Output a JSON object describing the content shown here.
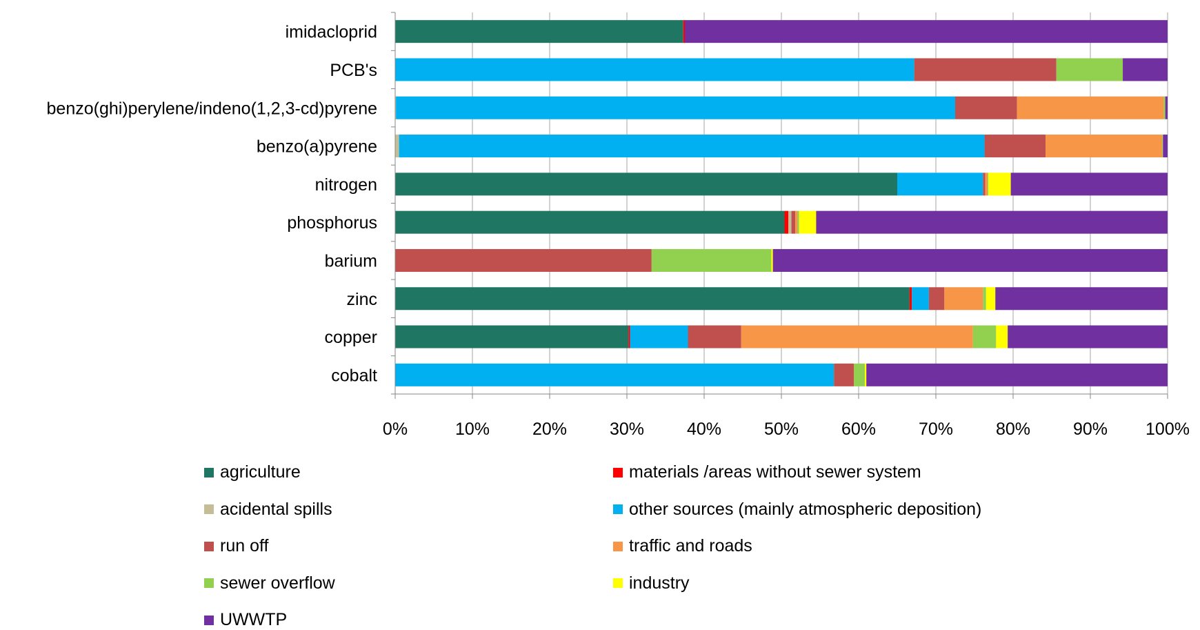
{
  "chart_data": {
    "type": "bar",
    "orientation": "horizontal",
    "stacked": "percent",
    "title": "",
    "xlabel": "",
    "ylabel": "",
    "xlim": [
      0,
      100
    ],
    "x_ticks": [
      "0%",
      "10%",
      "20%",
      "30%",
      "40%",
      "50%",
      "60%",
      "70%",
      "80%",
      "90%",
      "100%"
    ],
    "grid": true,
    "legend_position": "bottom",
    "categories": [
      "imidacloprid",
      "PCB's",
      "benzo(ghi)perylene/indeno(1,2,3-cd)pyrene",
      "benzo(a)pyrene",
      "nitrogen",
      "phosphorus",
      "barium",
      "zinc",
      "copper",
      "cobalt"
    ],
    "series": [
      {
        "name": "agriculture",
        "color": "#1f7763",
        "values": [
          37.3,
          0,
          0,
          0,
          65.0,
          50.4,
          0,
          66.6,
          30.2,
          0
        ]
      },
      {
        "name": "materials /areas without sewer system",
        "color": "#ff0000",
        "values": [
          0.2,
          0,
          0,
          0,
          0,
          0.5,
          0,
          0.3,
          0.2,
          0
        ]
      },
      {
        "name": "acidental spills",
        "color": "#c4bd97",
        "values": [
          0,
          0,
          0.1,
          0.5,
          0,
          0.4,
          0,
          0,
          0,
          0
        ]
      },
      {
        "name": "other sources (mainly atmospheric deposition)",
        "color": "#00b0f0",
        "values": [
          0,
          67.2,
          72.4,
          75.8,
          11.1,
          0,
          0,
          2.2,
          7.5,
          56.8
        ]
      },
      {
        "name": "run off",
        "color": "#c0504d",
        "values": [
          0,
          18.4,
          8.0,
          7.9,
          0.3,
          0.5,
          33.2,
          2.0,
          6.9,
          2.6
        ]
      },
      {
        "name": "traffic and roads",
        "color": "#f79646",
        "values": [
          0,
          0,
          19.0,
          15.1,
          0.3,
          0.3,
          0,
          5.0,
          30.0,
          0
        ]
      },
      {
        "name": "sewer overflow",
        "color": "#92d050",
        "values": [
          0,
          8.6,
          0.2,
          0.1,
          0.1,
          0.2,
          15.5,
          0.4,
          3.0,
          1.4
        ]
      },
      {
        "name": "industry",
        "color": "#ffff00",
        "values": [
          0,
          0,
          0,
          0,
          2.9,
          2.2,
          0.2,
          1.2,
          1.5,
          0.2
        ]
      },
      {
        "name": "UWWTP",
        "color": "#7030a0",
        "values": [
          62.5,
          5.8,
          0.3,
          0.6,
          20.3,
          45.5,
          51.1,
          22.3,
          20.7,
          39.0
        ]
      }
    ]
  }
}
